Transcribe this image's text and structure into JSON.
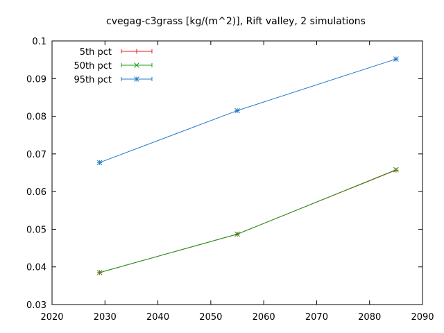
{
  "chart_data": {
    "type": "line",
    "title": "cvegag-c3grass [kg/(m^2)], Rift valley, 2 simulations",
    "xlabel": "",
    "ylabel": "",
    "xlim": [
      2020,
      2090
    ],
    "ylim": [
      0.03,
      0.1
    ],
    "xticks": [
      2020,
      2030,
      2040,
      2050,
      2060,
      2070,
      2080,
      2090
    ],
    "yticks": [
      0.03,
      0.04,
      0.05,
      0.06,
      0.07,
      0.08,
      0.09,
      0.1
    ],
    "xtick_labels": [
      "2020",
      "2030",
      "2040",
      "2050",
      "2060",
      "2070",
      "2080",
      "2090"
    ],
    "ytick_labels": [
      "0.03",
      "0.04",
      "0.05",
      "0.06",
      "0.07",
      "0.08",
      "0.09",
      "0.1"
    ],
    "grid": false,
    "legend_position": "top-left",
    "x": [
      2029,
      2055,
      2085
    ],
    "series": [
      {
        "name": "5th pct",
        "color": "#e41a1c",
        "marker": "plus",
        "values": [
          0.0385,
          0.0487,
          0.0657
        ]
      },
      {
        "name": "50th pct",
        "color": "#1a9e1a",
        "marker": "cross",
        "values": [
          0.0385,
          0.0487,
          0.0658
        ]
      },
      {
        "name": "95th pct",
        "color": "#1f78c8",
        "marker": "star",
        "values": [
          0.0677,
          0.0815,
          0.0952
        ]
      }
    ]
  }
}
